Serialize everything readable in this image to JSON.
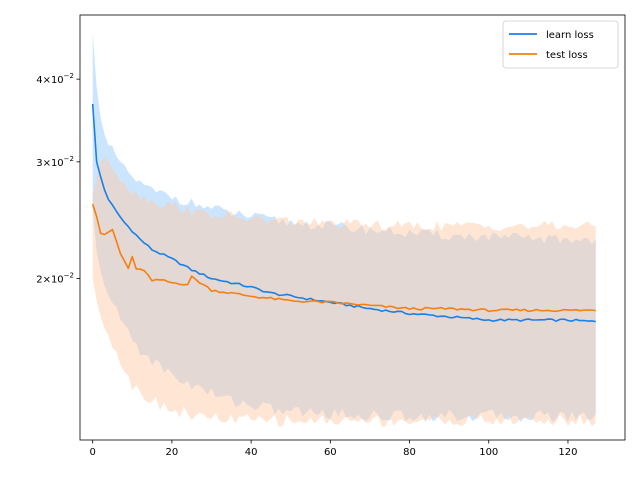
{
  "chart_data": {
    "type": "line",
    "title": "",
    "xlabel": "",
    "ylabel": "",
    "xlim": [
      -3.2,
      134.4
    ],
    "ylim": [
      0.0114,
      0.05
    ],
    "yscale": "log",
    "xticks": [
      0,
      20,
      40,
      60,
      80,
      100,
      120
    ],
    "xtick_labels": [
      "0",
      "20",
      "40",
      "60",
      "80",
      "100",
      "120"
    ],
    "yticks": [
      0.02,
      0.03,
      0.04
    ],
    "ytick_labels": [
      {
        "mantissa": "2",
        "base": "10",
        "exp": "−2"
      },
      {
        "mantissa": "3",
        "base": "10",
        "exp": "−2"
      },
      {
        "mantissa": "4",
        "base": "10",
        "exp": "−2"
      }
    ],
    "grid": false,
    "legend_position": "top-right",
    "series": [
      {
        "name": "learn loss",
        "color": "#1f77b4",
        "line_color": "#1a80e6",
        "band_color": "#7fbfff",
        "keypoints": {
          "x": [
            0,
            1,
            2,
            3,
            4,
            6,
            8,
            10,
            12,
            15,
            20,
            25,
            30,
            35,
            40,
            45,
            50,
            60,
            70,
            80,
            90,
            100,
            110,
            120,
            127
          ],
          "mean": [
            0.0367,
            0.03,
            0.0285,
            0.0272,
            0.0263,
            0.0252,
            0.0243,
            0.0236,
            0.0229,
            0.0221,
            0.0214,
            0.0206,
            0.02,
            0.0197,
            0.0194,
            0.019,
            0.0188,
            0.0184,
            0.018,
            0.0177,
            0.0175,
            0.0173,
            0.0173,
            0.0173,
            0.0172
          ],
          "upper": [
            0.047,
            0.039,
            0.035,
            0.033,
            0.0318,
            0.0305,
            0.0292,
            0.0285,
            0.0278,
            0.0271,
            0.0266,
            0.026,
            0.0255,
            0.0251,
            0.0248,
            0.0245,
            0.0243,
            0.024,
            0.0237,
            0.0234,
            0.0232,
            0.0231,
            0.023,
            0.0229,
            0.0229
          ],
          "lower": [
            0.0255,
            0.022,
            0.0205,
            0.0195,
            0.0188,
            0.0178,
            0.017,
            0.0162,
            0.0156,
            0.015,
            0.0143,
            0.0138,
            0.0134,
            0.0131,
            0.0129,
            0.0127,
            0.0126,
            0.0125,
            0.0124,
            0.0124,
            0.0124,
            0.0124,
            0.0124,
            0.0124,
            0.0124
          ]
        }
      },
      {
        "name": "test loss",
        "color": "#ff7f0e",
        "line_color": "#f57f10",
        "band_color": "#ffc8a0",
        "keypoints": {
          "x": [
            0,
            1,
            2,
            3,
            5,
            7,
            9,
            10,
            11,
            13,
            15,
            17,
            20,
            24,
            25,
            30,
            40,
            50,
            60,
            70,
            80,
            90,
            100,
            110,
            120,
            127
          ],
          "mean": [
            0.0259,
            0.0248,
            0.0234,
            0.0233,
            0.0237,
            0.0218,
            0.0207,
            0.0216,
            0.0206,
            0.0206,
            0.0198,
            0.0199,
            0.0197,
            0.0196,
            0.0201,
            0.0192,
            0.0188,
            0.0185,
            0.0184,
            0.0182,
            0.018,
            0.018,
            0.0179,
            0.0179,
            0.0179,
            0.0179
          ],
          "upper": [
            0.0265,
            0.0285,
            0.03,
            0.0305,
            0.0295,
            0.0285,
            0.0275,
            0.0272,
            0.0268,
            0.0266,
            0.0262,
            0.026,
            0.0258,
            0.0255,
            0.0252,
            0.025,
            0.0246,
            0.0244,
            0.0242,
            0.0241,
            0.024,
            0.024,
            0.024,
            0.024,
            0.024,
            0.024
          ],
          "lower": [
            0.02,
            0.0185,
            0.0175,
            0.0168,
            0.016,
            0.015,
            0.0143,
            0.0138,
            0.0136,
            0.0134,
            0.0131,
            0.0129,
            0.0127,
            0.0125,
            0.0124,
            0.0123,
            0.0122,
            0.0122,
            0.0122,
            0.0122,
            0.0122,
            0.0122,
            0.0122,
            0.0122,
            0.0122,
            0.0122
          ]
        }
      }
    ]
  }
}
